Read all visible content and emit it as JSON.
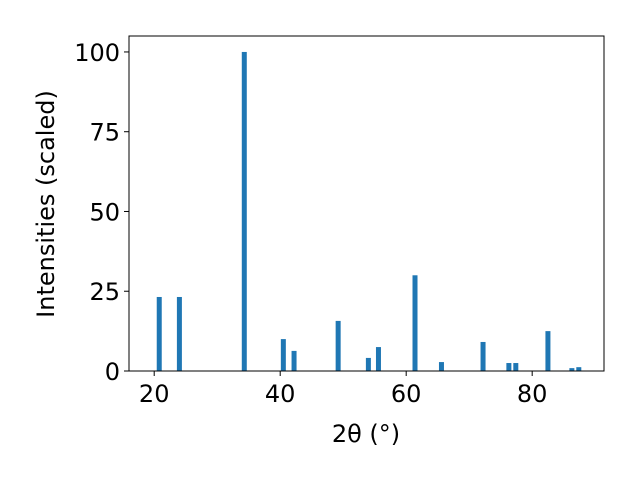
{
  "chart_data": {
    "type": "bar",
    "xlabel": "2θ (°)",
    "ylabel": "Intensities (scaled)",
    "x": [
      20.8,
      24.0,
      34.3,
      40.5,
      42.2,
      49.2,
      54.0,
      55.6,
      61.4,
      65.6,
      72.2,
      76.3,
      77.4,
      82.5,
      86.3,
      87.4
    ],
    "values": [
      23.2,
      23.2,
      100,
      10,
      6.3,
      15.7,
      4.1,
      7.5,
      30,
      2.8,
      9.1,
      2.5,
      2.5,
      12.5,
      0.9,
      1.2
    ],
    "color": "#1f77b4",
    "xlim": [
      16.0,
      91.4
    ],
    "ylim": [
      0,
      105
    ],
    "xticks": [
      20,
      40,
      60,
      80
    ],
    "yticks": [
      0,
      25,
      50,
      75,
      100
    ]
  }
}
